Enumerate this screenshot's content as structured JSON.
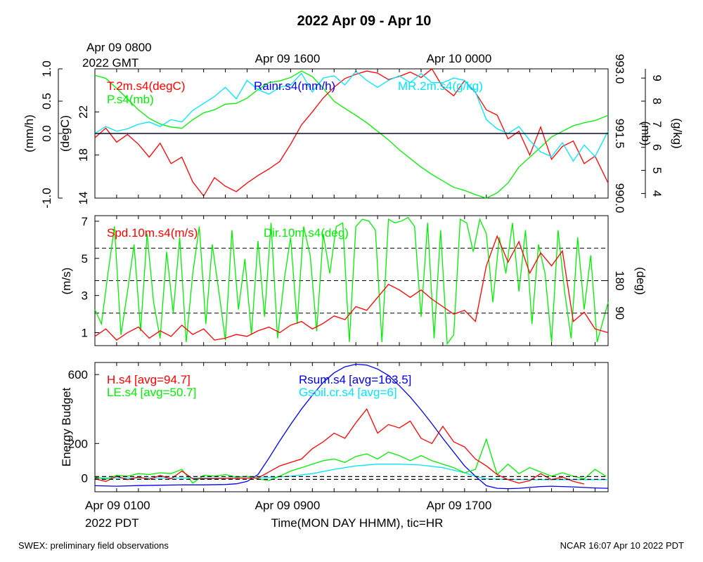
{
  "title": "2022 Apr 09 - Apr 10",
  "top_time_labels": {
    "start_line1": "Apr 09 0800",
    "start_line2": "2022 GMT",
    "mid": "Apr 09 1600",
    "end": "Apr 10 0000"
  },
  "bottom_time_labels": {
    "start_line1": "Apr 09 0100",
    "start_line2": "2022 PDT",
    "mid": "Apr 09 0900",
    "end": "Apr 09 1700"
  },
  "xlabel": "Time(MON DAY HHMM), tic=HR",
  "footer_left": "SWEX: preliminary field observations",
  "footer_right": "NCAR 16:07 Apr 10 2022 PDT",
  "colors": {
    "red": "#ff0000",
    "green": "#00ee00",
    "blue": "#0000ee",
    "cyan": "#00e5ff",
    "black": "#000000"
  },
  "chart_data": [
    {
      "type": "line",
      "panel": "meteorology",
      "x_range_hours_pdt": [
        0.0,
        23.6
      ],
      "axes": {
        "rain": {
          "label": "(mm/h)",
          "ylim": [
            -1.0,
            1.0
          ],
          "ticks": [
            "-1.0",
            "0.0",
            "0.5",
            "1.0"
          ]
        },
        "temp": {
          "label": "(degC)",
          "ylim": [
            14,
            26
          ],
          "ticks": [
            "14",
            "18",
            "22"
          ]
        },
        "pressure": {
          "label": "(mb)",
          "ylim": [
            990.0,
            993.0
          ],
          "ticks": [
            "990.0",
            "991.5",
            "993.0"
          ]
        },
        "mixing_ratio": {
          "label": "(g/kg)",
          "ylim": [
            3.8,
            9.4
          ],
          "ticks": [
            "4",
            "5",
            "6",
            "7",
            "8",
            "9"
          ]
        }
      },
      "series": [
        {
          "name": "T.2m.s4(degC)",
          "axis": "temp",
          "color": "#ff0000",
          "x": [
            0.0,
            0.5,
            1.0,
            1.5,
            2.0,
            2.5,
            3.0,
            3.5,
            4.0,
            4.5,
            5.0,
            5.5,
            6.0,
            6.5,
            7.0,
            7.5,
            8.0,
            8.5,
            9.0,
            9.5,
            10.0,
            10.5,
            11.0,
            11.5,
            12.0,
            12.5,
            13.0,
            13.5,
            14.0,
            14.5,
            15.0,
            15.5,
            16.0,
            16.5,
            17.0,
            17.5,
            18.0,
            18.5,
            19.0,
            19.5,
            20.0,
            20.5,
            21.0,
            21.5,
            22.0,
            22.5,
            23.0,
            23.6
          ],
          "y": [
            19.6,
            20.5,
            19.2,
            19.9,
            19.0,
            17.8,
            19.1,
            17.2,
            17.8,
            15.5,
            14.2,
            15.9,
            15.1,
            14.6,
            15.4,
            16.1,
            16.7,
            17.4,
            19.0,
            20.8,
            22.0,
            23.3,
            24.3,
            25.1,
            25.5,
            25.8,
            25.6,
            25.0,
            25.3,
            25.7,
            25.2,
            26.0,
            24.3,
            23.5,
            24.9,
            23.8,
            22.2,
            21.7,
            19.5,
            20.2,
            18.0,
            20.6,
            17.6,
            18.8,
            19.3,
            17.2,
            17.9,
            15.4
          ]
        },
        {
          "name": "P.s4(mb)",
          "axis": "pressure",
          "color": "#00ee00",
          "x": [
            0.0,
            0.5,
            1.0,
            1.5,
            2.0,
            2.5,
            3.0,
            3.5,
            4.0,
            4.5,
            5.0,
            5.5,
            6.0,
            6.5,
            7.0,
            7.5,
            8.0,
            8.5,
            9.0,
            9.5,
            10.0,
            10.5,
            11.0,
            11.5,
            12.0,
            12.5,
            13.0,
            13.5,
            14.0,
            14.5,
            15.0,
            15.5,
            16.0,
            16.5,
            17.0,
            17.5,
            18.0,
            18.5,
            19.0,
            19.5,
            20.0,
            20.5,
            21.0,
            21.5,
            22.0,
            22.5,
            23.0,
            23.6
          ],
          "y": [
            992.85,
            992.78,
            992.55,
            992.3,
            992.05,
            991.85,
            991.72,
            991.65,
            991.62,
            991.82,
            991.98,
            992.05,
            992.18,
            992.2,
            992.32,
            992.52,
            992.68,
            992.72,
            992.8,
            992.95,
            992.82,
            992.55,
            992.25,
            992.08,
            991.92,
            991.75,
            991.55,
            991.35,
            991.12,
            990.92,
            990.72,
            990.55,
            990.4,
            990.25,
            990.18,
            990.08,
            990.0,
            990.12,
            990.35,
            990.72,
            990.95,
            991.18,
            991.42,
            991.55,
            991.68,
            991.75,
            991.8,
            991.92
          ]
        },
        {
          "name": "MR.2m.s4(g/kg)",
          "axis": "mixing_ratio",
          "color": "#00e5ff",
          "x": [
            0.0,
            0.5,
            1.0,
            1.5,
            2.0,
            2.5,
            3.0,
            3.5,
            4.0,
            4.5,
            5.0,
            5.5,
            6.0,
            6.5,
            7.0,
            7.5,
            8.0,
            8.5,
            9.0,
            9.5,
            10.0,
            10.5,
            11.0,
            11.5,
            12.0,
            12.5,
            13.0,
            13.5,
            14.0,
            14.5,
            15.0,
            15.5,
            16.0,
            16.5,
            17.0,
            17.5,
            18.0,
            18.5,
            19.0,
            19.5,
            20.0,
            20.5,
            21.0,
            21.5,
            22.0,
            22.5,
            23.0,
            23.6
          ],
          "y": [
            6.6,
            6.9,
            6.7,
            6.8,
            7.0,
            7.1,
            6.9,
            7.2,
            7.1,
            7.6,
            7.9,
            8.2,
            8.6,
            8.1,
            8.9,
            8.5,
            8.3,
            8.6,
            8.7,
            9.2,
            8.4,
            9.0,
            9.1,
            8.7,
            9.3,
            8.9,
            8.6,
            8.9,
            9.1,
            8.8,
            9.2,
            8.8,
            8.8,
            9.0,
            8.9,
            8.4,
            7.2,
            6.8,
            6.6,
            6.9,
            6.3,
            5.8,
            5.6,
            6.2,
            5.4,
            6.1,
            5.6,
            6.7
          ]
        },
        {
          "name": "Rainr.s4(mm/h)",
          "axis": "rain",
          "color": "#0000ee",
          "x": [
            0.0,
            23.6
          ],
          "y": [
            0.0,
            0.0
          ]
        }
      ]
    },
    {
      "type": "line",
      "panel": "wind",
      "x_range_hours_pdt": [
        0.0,
        23.6
      ],
      "axes": {
        "speed": {
          "label": "(m/s)",
          "ylim": [
            0.3,
            7.3
          ],
          "ticks": [
            "1",
            "3",
            "5",
            "7"
          ]
        },
        "direction": {
          "label": "(deg)",
          "ylim": [
            0,
            360
          ],
          "ticks": [
            "90",
            "180"
          ]
        }
      },
      "reference_lines_deg": [
        90,
        180,
        270
      ],
      "series": [
        {
          "name": "Spd.10m.s4(m/s)",
          "axis": "speed",
          "color": "#ff0000",
          "x": [
            0.0,
            0.5,
            1.0,
            1.5,
            2.0,
            2.5,
            3.0,
            3.5,
            4.0,
            4.5,
            5.0,
            5.5,
            6.0,
            6.5,
            7.0,
            7.5,
            8.0,
            8.5,
            9.0,
            9.5,
            10.0,
            10.5,
            11.0,
            11.5,
            12.0,
            12.5,
            13.0,
            13.5,
            14.0,
            14.5,
            15.0,
            15.5,
            16.0,
            16.5,
            17.0,
            17.5,
            18.0,
            18.5,
            19.0,
            19.5,
            20.0,
            20.5,
            21.0,
            21.5,
            22.0,
            22.5,
            23.0,
            23.6
          ],
          "y": [
            0.8,
            1.2,
            0.6,
            1.0,
            1.3,
            0.7,
            1.1,
            0.8,
            1.4,
            0.9,
            1.2,
            0.6,
            0.7,
            0.9,
            0.8,
            1.1,
            1.3,
            1.0,
            1.4,
            1.6,
            1.2,
            1.5,
            1.9,
            1.7,
            2.4,
            2.2,
            2.9,
            3.6,
            3.3,
            2.9,
            3.3,
            2.8,
            2.4,
            2.0,
            2.2,
            1.6,
            4.6,
            6.2,
            4.8,
            5.9,
            4.2,
            5.3,
            4.6,
            5.4,
            1.6,
            2.1,
            1.2,
            1.0
          ]
        },
        {
          "name": "Dir.10m.s4(deg)",
          "axis": "direction",
          "color": "#00ee00",
          "x": [
            0.0,
            0.3,
            0.6,
            0.9,
            1.2,
            1.5,
            1.8,
            2.1,
            2.4,
            2.7,
            3.0,
            3.3,
            3.6,
            3.9,
            4.2,
            4.5,
            4.8,
            5.1,
            5.4,
            5.7,
            6.0,
            6.3,
            6.6,
            6.9,
            7.2,
            7.5,
            7.8,
            8.1,
            8.4,
            8.7,
            9.0,
            9.3,
            9.6,
            9.9,
            10.2,
            10.5,
            10.8,
            11.1,
            11.4,
            11.7,
            12.0,
            12.3,
            12.6,
            12.9,
            13.2,
            13.5,
            13.8,
            14.1,
            14.4,
            14.7,
            15.0,
            15.3,
            15.6,
            15.9,
            16.2,
            16.5,
            16.8,
            17.1,
            17.4,
            17.7,
            18.0,
            18.3,
            18.6,
            18.9,
            19.2,
            19.5,
            19.8,
            20.1,
            20.4,
            20.7,
            21.0,
            21.3,
            21.6,
            21.9,
            22.2,
            22.5,
            22.8,
            23.1,
            23.6
          ],
          "y": [
            100,
            60,
            200,
            330,
            30,
            150,
            280,
            40,
            310,
            120,
            20,
            260,
            90,
            300,
            10,
            200,
            330,
            60,
            280,
            150,
            15,
            320,
            100,
            240,
            30,
            290,
            80,
            340,
            20,
            180,
            300,
            60,
            330,
            250,
            40,
            310,
            200,
            330,
            340,
            10,
            330,
            350,
            345,
            320,
            10,
            350,
            340,
            345,
            355,
            330,
            80,
            340,
            20,
            320,
            5,
            30,
            350,
            340,
            260,
            350,
            310,
            120,
            300,
            200,
            340,
            150,
            320,
            60,
            280,
            200,
            10,
            320,
            150,
            20,
            300,
            100,
            250,
            10,
            120
          ]
        }
      ]
    },
    {
      "type": "line",
      "panel": "energy",
      "x_range_hours_pdt": [
        0.0,
        23.6
      ],
      "axes": {
        "energy": {
          "label": "Energy Budget",
          "ylim": [
            -80,
            670
          ],
          "ticks": [
            "0",
            "200",
            "600"
          ]
        }
      },
      "reference_lines": [
        0,
        0
      ],
      "series": [
        {
          "name": "H.s4",
          "avg_label": "[avg=94.7]",
          "color": "#ff0000",
          "x": [
            0.0,
            0.5,
            1.0,
            1.5,
            2.0,
            2.5,
            3.0,
            3.5,
            4.0,
            4.5,
            7.5,
            8.0,
            8.5,
            9.0,
            9.5,
            10.0,
            10.5,
            11.0,
            11.5,
            12.0,
            12.5,
            13.0,
            13.5,
            14.0,
            14.5,
            15.0,
            15.5,
            16.0,
            16.5,
            17.0,
            17.5,
            18.0,
            18.5,
            19.0,
            19.5,
            20.0,
            20.5,
            21.0,
            21.5,
            22.0,
            22.5
          ],
          "y": [
            -5,
            -20,
            10,
            -10,
            5,
            -8,
            15,
            -5,
            40,
            -5,
            0,
            35,
            70,
            90,
            110,
            170,
            210,
            260,
            230,
            320,
            400,
            260,
            310,
            290,
            330,
            230,
            200,
            300,
            210,
            180,
            110,
            70,
            20,
            -10,
            -30,
            -15,
            25,
            -10,
            5,
            -20,
            -35
          ]
        },
        {
          "name": "LE.s4",
          "avg_label": "[avg=50.7]",
          "color": "#00ee00",
          "x": [
            0.0,
            0.5,
            1.0,
            1.5,
            2.0,
            2.5,
            3.0,
            3.5,
            4.0,
            4.5,
            5.0,
            5.5,
            6.0,
            6.5,
            7.0,
            7.5,
            8.0,
            8.5,
            9.0,
            9.5,
            10.0,
            10.5,
            11.0,
            11.5,
            12.0,
            12.5,
            13.0,
            13.5,
            14.0,
            14.5,
            15.0,
            15.5,
            16.0,
            16.5,
            17.0,
            17.5,
            18.0,
            18.5,
            19.0,
            19.5,
            20.0,
            20.5,
            21.0,
            21.5,
            22.0,
            22.5,
            23.0,
            23.5
          ],
          "y": [
            5,
            -8,
            15,
            10,
            25,
            20,
            30,
            25,
            50,
            -30,
            15,
            10,
            20,
            5,
            10,
            -5,
            -15,
            10,
            40,
            60,
            80,
            100,
            110,
            90,
            125,
            140,
            110,
            150,
            130,
            100,
            130,
            100,
            80,
            60,
            30,
            50,
            225,
            20,
            80,
            25,
            60,
            35,
            10,
            30,
            10,
            -5,
            50,
            10
          ]
        },
        {
          "name": "Rsum.s4",
          "avg_label": "[avg=163.5]",
          "color": "#0000ee",
          "x": [
            0.0,
            1.0,
            2.0,
            3.0,
            4.0,
            5.0,
            6.0,
            6.5,
            7.0,
            7.5,
            8.0,
            8.5,
            9.0,
            9.5,
            10.0,
            10.5,
            11.0,
            11.5,
            12.0,
            12.5,
            13.0,
            13.5,
            14.0,
            14.5,
            15.0,
            15.5,
            16.0,
            16.5,
            17.0,
            17.5,
            18.0,
            18.5,
            19.0,
            19.5,
            20.0,
            20.5,
            21.0,
            22.0,
            23.0,
            23.6
          ],
          "y": [
            -45,
            -48,
            -44,
            -42,
            -40,
            -40,
            -38,
            -34,
            -20,
            20,
            115,
            215,
            310,
            400,
            480,
            555,
            610,
            645,
            660,
            655,
            632,
            595,
            535,
            470,
            395,
            315,
            230,
            150,
            70,
            10,
            -45,
            -60,
            -62,
            -60,
            -55,
            -50,
            -48,
            -52,
            -58,
            -60
          ]
        },
        {
          "name": "Gsoil.cr.s4",
          "avg_label": "[avg=6]",
          "color": "#00e5ff",
          "x": [
            0.0,
            2.0,
            4.0,
            6.0,
            7.0,
            8.0,
            9.0,
            10.0,
            11.0,
            12.0,
            13.0,
            14.0,
            15.0,
            16.0,
            17.0,
            17.5,
            18.0,
            19.0,
            20.0,
            21.0,
            22.0,
            23.0,
            23.6
          ],
          "y": [
            0,
            0,
            0,
            0,
            0,
            2,
            10,
            25,
            50,
            70,
            80,
            80,
            75,
            60,
            30,
            10,
            -5,
            -8,
            -10,
            -10,
            -10,
            -10,
            -10
          ]
        }
      ]
    }
  ]
}
